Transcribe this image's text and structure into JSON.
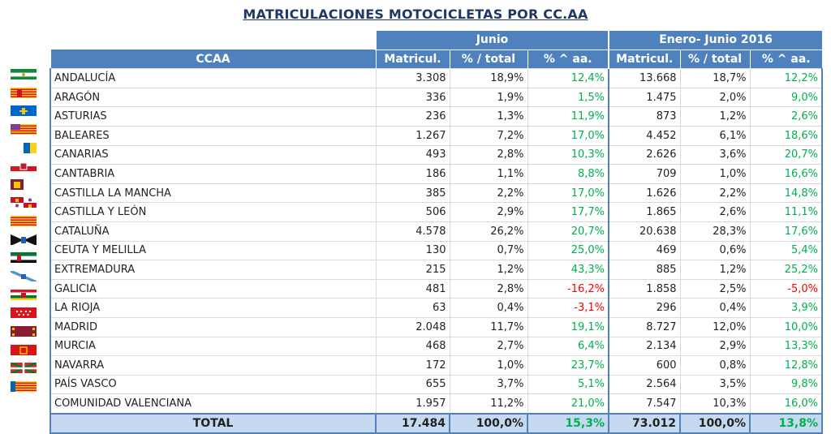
{
  "title": "MATRICULACIONES MOTOCICLETAS POR CC.AA",
  "header": {
    "group1": "Junio",
    "group2": "Enero- Junio 2016",
    "ccaa": "CCAA",
    "cols": [
      "Matricul.",
      "% / total",
      "% ^ aa.",
      "Matricul.",
      "% / total",
      "% ^ aa."
    ]
  },
  "rows": [
    {
      "name": "ANDALUCÍA",
      "flag": "andalucia-flag",
      "m1": "3.308",
      "p1": "18,9%",
      "v1": "12,4%",
      "m2": "13.668",
      "p2": "18,7%",
      "v2": "12,2%"
    },
    {
      "name": "ARAGÓN",
      "flag": "aragon-flag",
      "m1": "336",
      "p1": "1,9%",
      "v1": "1,5%",
      "m2": "1.475",
      "p2": "2,0%",
      "v2": "9,0%"
    },
    {
      "name": "ASTURIAS",
      "flag": "asturias-flag",
      "m1": "236",
      "p1": "1,3%",
      "v1": "11,9%",
      "m2": "873",
      "p2": "1,2%",
      "v2": "2,6%"
    },
    {
      "name": "BALEARES",
      "flag": "baleares-flag",
      "m1": "1.267",
      "p1": "7,2%",
      "v1": "17,0%",
      "m2": "4.452",
      "p2": "6,1%",
      "v2": "18,6%"
    },
    {
      "name": "CANARIAS",
      "flag": "canarias-flag",
      "m1": "493",
      "p1": "2,8%",
      "v1": "10,3%",
      "m2": "2.626",
      "p2": "3,6%",
      "v2": "20,7%"
    },
    {
      "name": "CANTABRIA",
      "flag": "cantabria-flag",
      "m1": "186",
      "p1": "1,1%",
      "v1": "8,8%",
      "m2": "709",
      "p2": "1,0%",
      "v2": "16,6%"
    },
    {
      "name": "CASTILLA LA MANCHA",
      "flag": "castilla-la-mancha-flag",
      "m1": "385",
      "p1": "2,2%",
      "v1": "17,0%",
      "m2": "1.626",
      "p2": "2,2%",
      "v2": "14,8%"
    },
    {
      "name": "CASTILLA Y LEÓN",
      "flag": "castilla-y-leon-flag",
      "m1": "506",
      "p1": "2,9%",
      "v1": "17,7%",
      "m2": "1.865",
      "p2": "2,6%",
      "v2": "11,1%"
    },
    {
      "name": "CATALUÑA",
      "flag": "cataluna-flag",
      "m1": "4.578",
      "p1": "26,2%",
      "v1": "20,7%",
      "m2": "20.638",
      "p2": "28,3%",
      "v2": "17,6%"
    },
    {
      "name": "CEUTA Y MELILLA",
      "flag": "ceuta-melilla-flag",
      "m1": "130",
      "p1": "0,7%",
      "v1": "25,0%",
      "m2": "469",
      "p2": "0,6%",
      "v2": "5,4%"
    },
    {
      "name": "EXTREMADURA",
      "flag": "extremadura-flag",
      "m1": "215",
      "p1": "1,2%",
      "v1": "43,3%",
      "m2": "885",
      "p2": "1,2%",
      "v2": "25,2%"
    },
    {
      "name": "GALICIA",
      "flag": "galicia-flag",
      "m1": "481",
      "p1": "2,8%",
      "v1": "-16,2%",
      "m2": "1.858",
      "p2": "2,5%",
      "v2": "-5,0%"
    },
    {
      "name": "LA RIOJA",
      "flag": "la-rioja-flag",
      "m1": "63",
      "p1": "0,4%",
      "v1": "-3,1%",
      "m2": "296",
      "p2": "0,4%",
      "v2": "3,9%"
    },
    {
      "name": "MADRID",
      "flag": "madrid-flag",
      "m1": "2.048",
      "p1": "11,7%",
      "v1": "19,1%",
      "m2": "8.727",
      "p2": "12,0%",
      "v2": "10,0%"
    },
    {
      "name": "MURCIA",
      "flag": "murcia-flag",
      "m1": "468",
      "p1": "2,7%",
      "v1": "6,4%",
      "m2": "2.134",
      "p2": "2,9%",
      "v2": "13,3%"
    },
    {
      "name": "NAVARRA",
      "flag": "navarra-flag",
      "m1": "172",
      "p1": "1,0%",
      "v1": "23,7%",
      "m2": "600",
      "p2": "0,8%",
      "v2": "12,8%"
    },
    {
      "name": "PAÍS VASCO",
      "flag": "pais-vasco-flag",
      "m1": "655",
      "p1": "3,7%",
      "v1": "5,1%",
      "m2": "2.564",
      "p2": "3,5%",
      "v2": "9,8%"
    },
    {
      "name": "COMUNIDAD VALENCIANA",
      "flag": "valencia-flag",
      "m1": "1.957",
      "p1": "11,2%",
      "v1": "21,0%",
      "m2": "7.547",
      "p2": "10,3%",
      "v2": "16,0%"
    }
  ],
  "total": {
    "label": "TOTAL",
    "m1": "17.484",
    "p1": "100,0%",
    "v1": "15,3%",
    "m2": "73.012",
    "p2": "100,0%",
    "v2": "13,8%"
  },
  "colors": {
    "header": "#4f81bd",
    "total_bg": "#c5d9f1",
    "positive": "#00b050",
    "negative": "#ff0000",
    "title": "#1f3864"
  }
}
